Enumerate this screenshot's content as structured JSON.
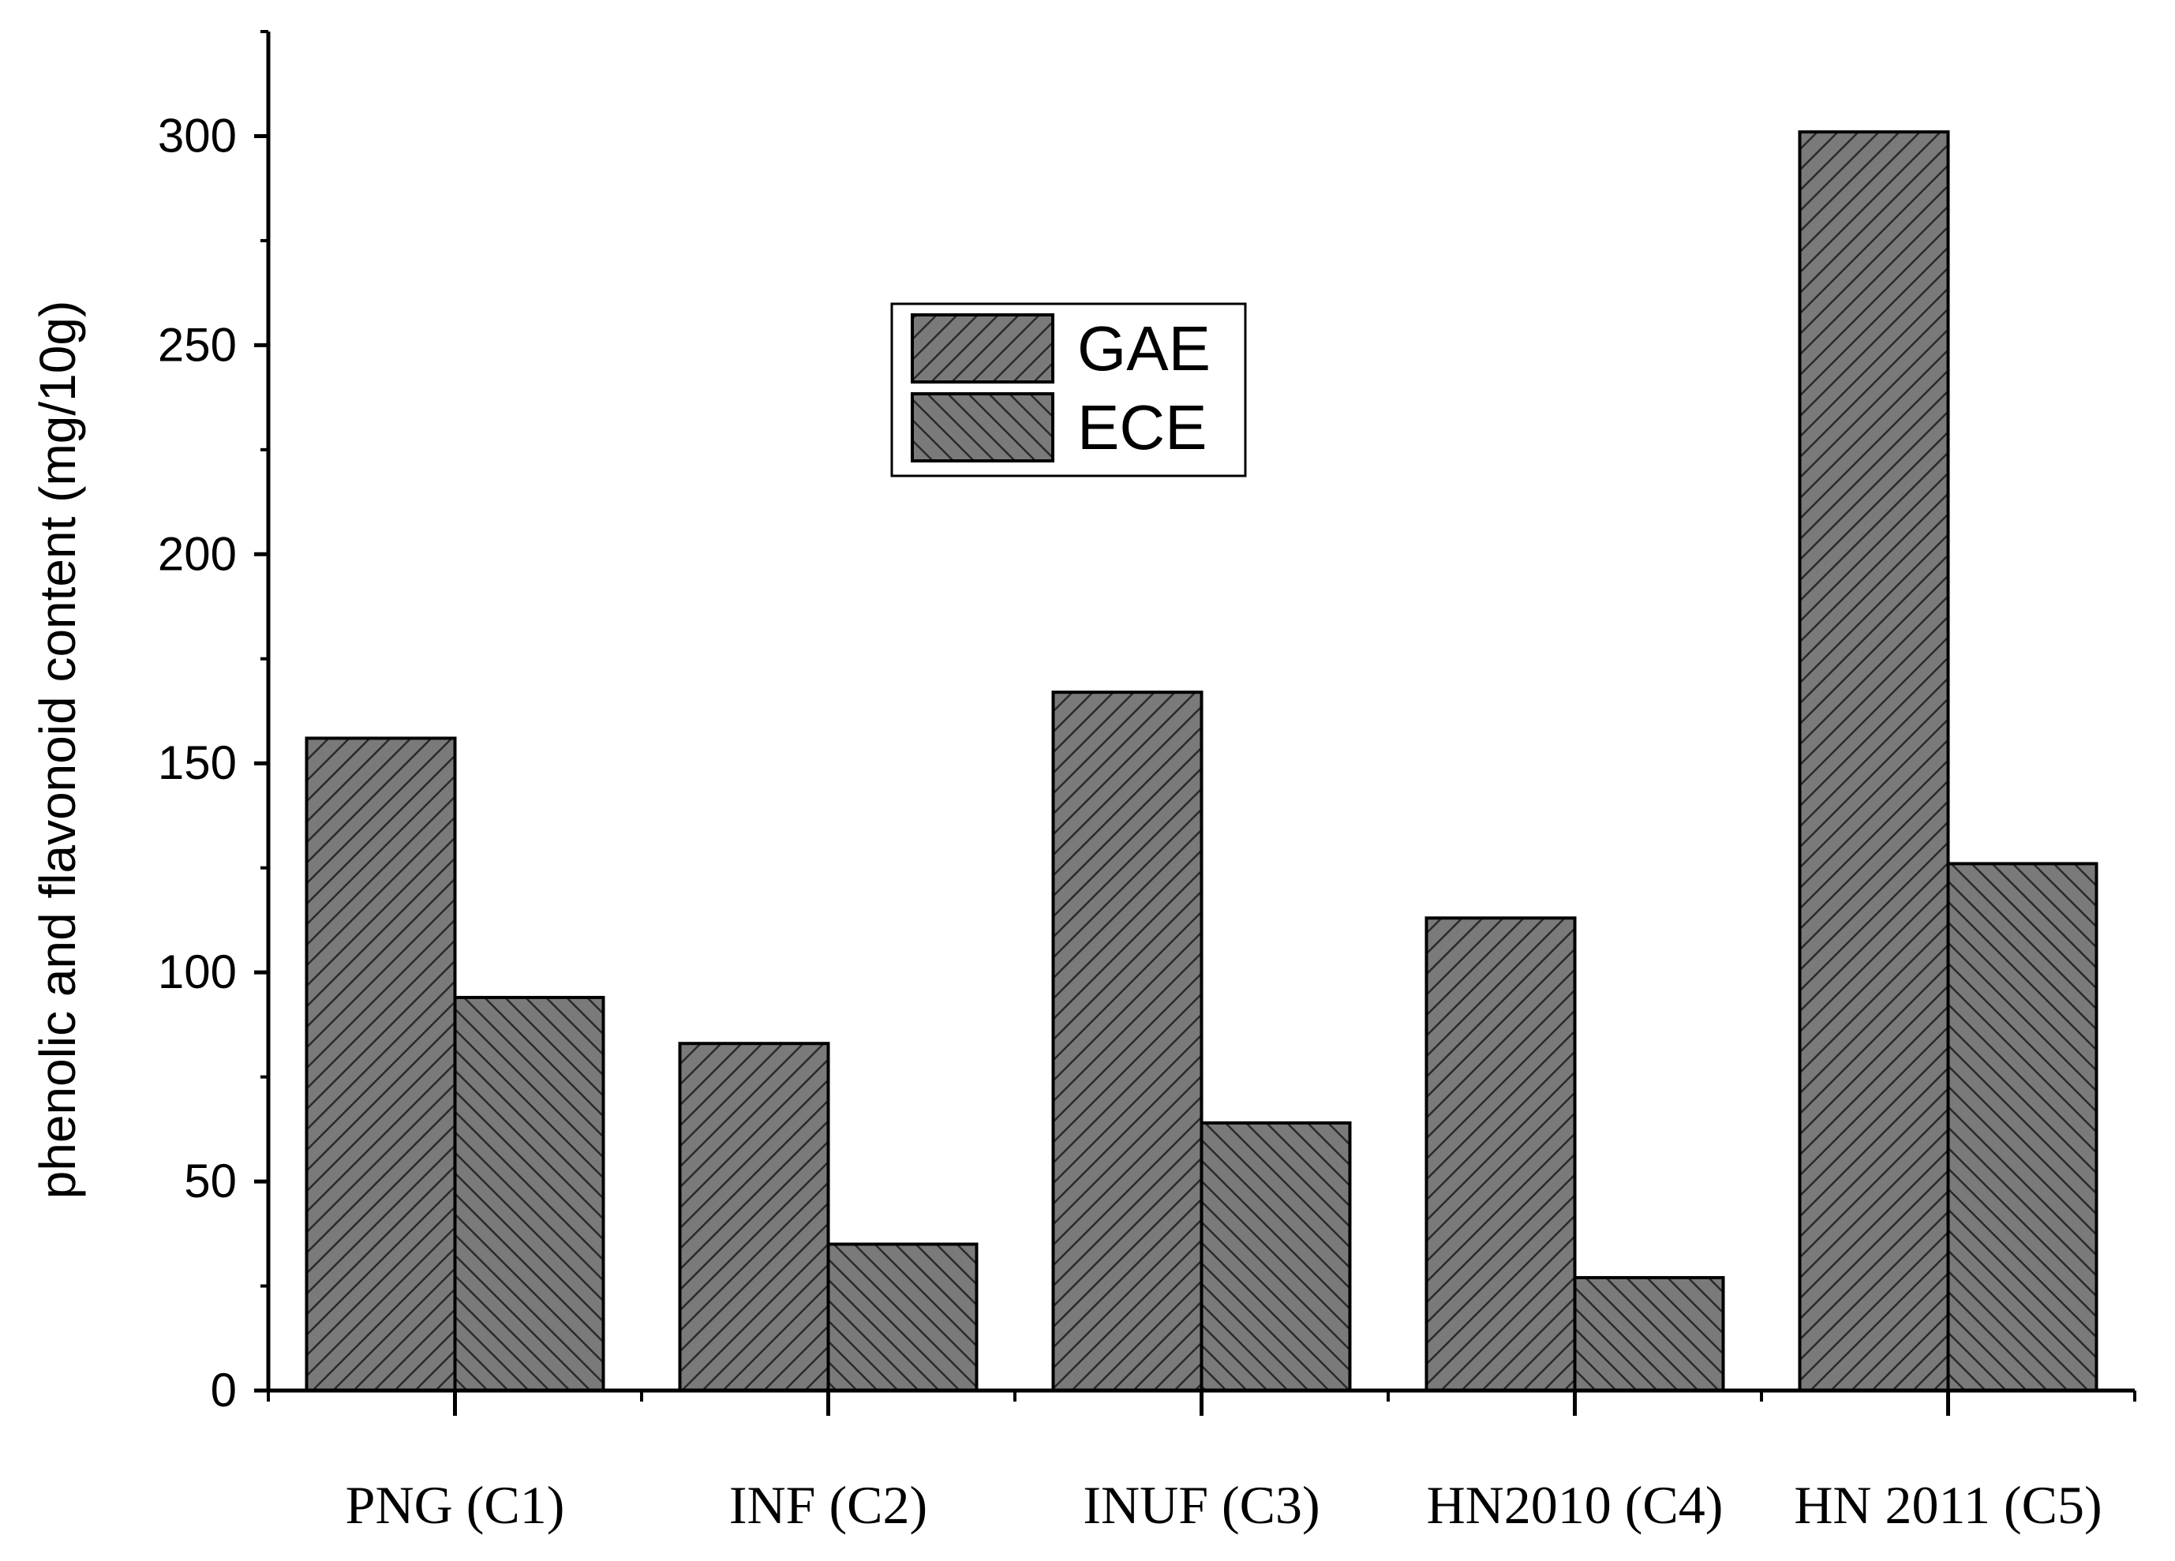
{
  "chart_data": {
    "type": "bar",
    "title": "",
    "xlabel": "",
    "ylabel": "phenolic and flavonoid content (mg/10g)",
    "categories": [
      "PNG (C1)",
      "INF (C2)",
      "INUF (C3)",
      "HN2010 (C4)",
      "HN 2011 (C5)"
    ],
    "series": [
      {
        "name": "GAE",
        "values": [
          156,
          83,
          167,
          113,
          301
        ],
        "pattern": "forward-hatch",
        "color": "#7a7a7a"
      },
      {
        "name": "ECE",
        "values": [
          94,
          35,
          64,
          27,
          126
        ],
        "pattern": "back-hatch",
        "color": "#7a7a7a"
      }
    ],
    "ylim": [
      0,
      325
    ],
    "yticks": [
      0,
      50,
      100,
      150,
      200,
      250,
      300
    ],
    "ytick_labels": [
      "0",
      "50",
      "100",
      "150",
      "200",
      "250",
      "300"
    ],
    "grid": false,
    "legend": {
      "position": "top-center",
      "entries": [
        "GAE",
        "ECE"
      ]
    }
  }
}
